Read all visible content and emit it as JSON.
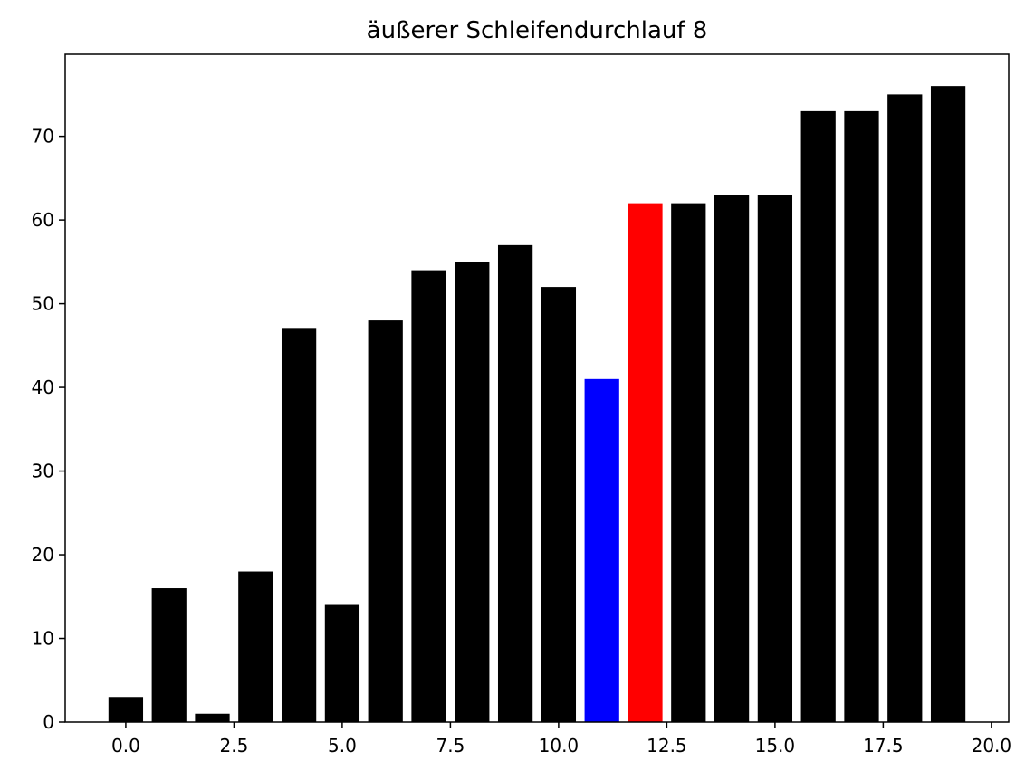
{
  "chart_data": {
    "type": "bar",
    "title": "äußerer Schleifendurchlauf 8",
    "xlabel": "",
    "ylabel": "",
    "x": [
      0,
      1,
      2,
      3,
      4,
      5,
      6,
      7,
      8,
      9,
      10,
      11,
      12,
      13,
      14,
      15,
      16,
      17,
      18,
      19
    ],
    "values": [
      3,
      16,
      1,
      18,
      47,
      14,
      48,
      54,
      55,
      57,
      52,
      41,
      62,
      62,
      63,
      63,
      73,
      73,
      75,
      76
    ],
    "colors": [
      "#000000",
      "#000000",
      "#000000",
      "#000000",
      "#000000",
      "#000000",
      "#000000",
      "#000000",
      "#000000",
      "#000000",
      "#000000",
      "#0000ff",
      "#ff0000",
      "#000000",
      "#000000",
      "#000000",
      "#000000",
      "#000000",
      "#000000",
      "#000000"
    ],
    "xlim": [
      -1.4,
      20.4
    ],
    "ylim": [
      0,
      79.8
    ],
    "xticks": [
      0,
      2.5,
      5,
      7.5,
      10,
      12.5,
      15,
      17.5,
      20
    ],
    "xtick_labels": [
      "0.0",
      "2.5",
      "5.0",
      "7.5",
      "10.0",
      "12.5",
      "15.0",
      "17.5",
      "20.0"
    ],
    "yticks": [
      0,
      10,
      20,
      30,
      40,
      50,
      60,
      70
    ],
    "ytick_labels": [
      "0",
      "10",
      "20",
      "30",
      "40",
      "50",
      "60",
      "70"
    ],
    "grid": false,
    "legend": "none"
  }
}
